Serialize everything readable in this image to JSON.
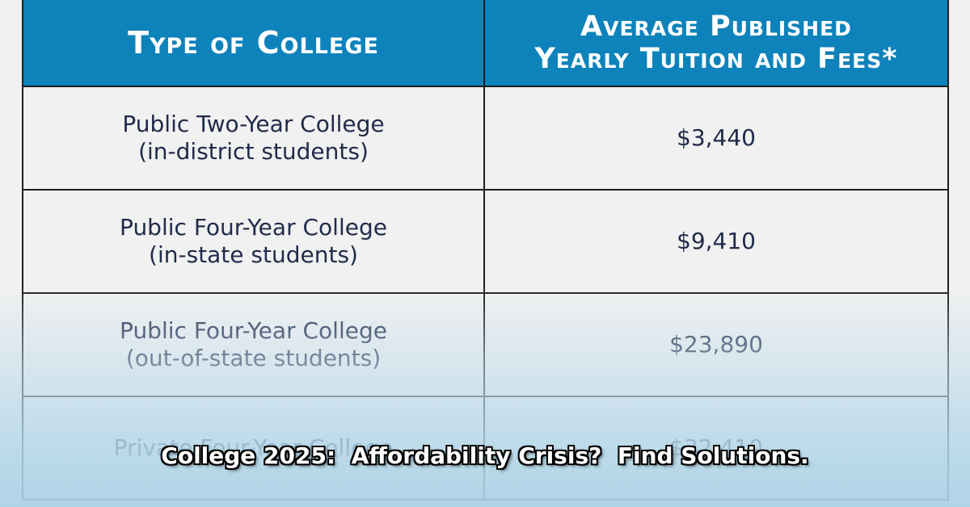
{
  "table": {
    "headers": {
      "type_of_college": "Type of College",
      "avg_line1": "Average Published",
      "avg_line2": "Yearly Tuition and Fees*"
    },
    "rows": [
      {
        "type_line1": "Public Two-Year College",
        "type_line2": "(in-district students)",
        "cost": "$3,440"
      },
      {
        "type_line1": "Public Four-Year College",
        "type_line2": "(in-state students)",
        "cost": "$9,410"
      },
      {
        "type_line1": "Public Four-Year College",
        "type_line2": "(out-of-state students)",
        "cost": "$23,890"
      },
      {
        "type_line1": "Private Four-Year College",
        "type_line2": "",
        "cost": "$32,410"
      }
    ]
  },
  "caption": "College 2025:  Affordability Crisis?  Find Solutions.",
  "colors": {
    "header_bg": "#0e83bb",
    "header_text": "#ffffff",
    "cell_text": "#222b4a",
    "page_bg": "#f1f1f1"
  }
}
